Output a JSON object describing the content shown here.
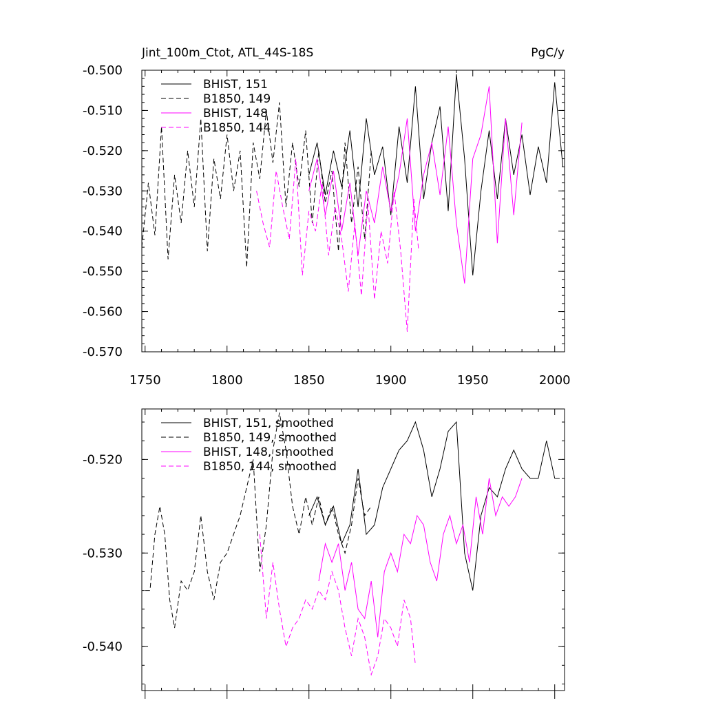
{
  "title_left": "Jint_100m_Ctot, ATL_44S-18S",
  "title_right": "PgC/y",
  "colors": {
    "black": "#000000",
    "magenta": "#ff00ff"
  },
  "chart_data": [
    {
      "type": "line",
      "name": "raw",
      "xlim": [
        1748,
        2006
      ],
      "ylim": [
        -0.57,
        -0.5
      ],
      "x_ticks": [
        1750,
        1800,
        1850,
        1900,
        1950,
        2000
      ],
      "x_tick_labels": [
        "1750",
        "1800",
        "1850",
        "1900",
        "1950",
        "2000"
      ],
      "y_ticks": [
        -0.5,
        -0.51,
        -0.52,
        -0.53,
        -0.54,
        -0.55,
        -0.56,
        -0.57
      ],
      "y_tick_labels": [
        "-0.500",
        "-0.510",
        "-0.520",
        "-0.530",
        "-0.540",
        "-0.550",
        "-0.560",
        "-0.570"
      ],
      "legend": [
        "BHIST, 151",
        "B1850, 149",
        "BHIST, 148",
        "B1850, 144"
      ],
      "series": [
        {
          "name": "BHIST, 151",
          "color": "#000000",
          "dash": false,
          "x": [
            1850,
            1855,
            1860,
            1865,
            1870,
            1875,
            1880,
            1885,
            1890,
            1895,
            1900,
            1905,
            1910,
            1915,
            1920,
            1925,
            1930,
            1935,
            1940,
            1945,
            1950,
            1955,
            1960,
            1965,
            1970,
            1975,
            1980,
            1985,
            1990,
            1995,
            2000,
            2005
          ],
          "values": [
            -0.526,
            -0.518,
            -0.531,
            -0.52,
            -0.529,
            -0.515,
            -0.534,
            -0.512,
            -0.526,
            -0.519,
            -0.536,
            -0.514,
            -0.528,
            -0.504,
            -0.532,
            -0.518,
            -0.509,
            -0.535,
            -0.501,
            -0.522,
            -0.551,
            -0.53,
            -0.515,
            -0.532,
            -0.512,
            -0.526,
            -0.516,
            -0.531,
            -0.519,
            -0.528,
            -0.503,
            -0.524
          ]
        },
        {
          "name": "B1850, 149",
          "color": "#000000",
          "dash": true,
          "x": [
            1748,
            1752,
            1756,
            1760,
            1764,
            1768,
            1772,
            1776,
            1780,
            1784,
            1788,
            1792,
            1796,
            1800,
            1804,
            1808,
            1812,
            1816,
            1820,
            1824,
            1828,
            1832,
            1836,
            1840,
            1844,
            1848,
            1852,
            1856,
            1860,
            1864,
            1868,
            1872,
            1876,
            1880,
            1884,
            1888
          ],
          "values": [
            -0.544,
            -0.528,
            -0.541,
            -0.514,
            -0.547,
            -0.526,
            -0.538,
            -0.52,
            -0.534,
            -0.512,
            -0.545,
            -0.522,
            -0.532,
            -0.516,
            -0.53,
            -0.52,
            -0.549,
            -0.518,
            -0.527,
            -0.51,
            -0.523,
            -0.508,
            -0.534,
            -0.518,
            -0.529,
            -0.515,
            -0.538,
            -0.52,
            -0.533,
            -0.525,
            -0.545,
            -0.518,
            -0.538,
            -0.524,
            -0.542,
            -0.52
          ]
        },
        {
          "name": "BHIST, 148",
          "color": "#ff00ff",
          "dash": false,
          "x": [
            1850,
            1855,
            1860,
            1865,
            1870,
            1875,
            1880,
            1885,
            1890,
            1895,
            1900,
            1905,
            1910,
            1915,
            1920,
            1925,
            1930,
            1935,
            1940,
            1945,
            1950,
            1955,
            1960,
            1965,
            1970,
            1975,
            1980
          ],
          "values": [
            -0.53,
            -0.522,
            -0.536,
            -0.525,
            -0.54,
            -0.528,
            -0.546,
            -0.53,
            -0.538,
            -0.524,
            -0.535,
            -0.526,
            -0.512,
            -0.54,
            -0.526,
            -0.518,
            -0.531,
            -0.514,
            -0.538,
            -0.553,
            -0.522,
            -0.516,
            -0.504,
            -0.543,
            -0.512,
            -0.536,
            -0.513
          ]
        },
        {
          "name": "B1850, 144",
          "color": "#ff00ff",
          "dash": true,
          "x": [
            1818,
            1822,
            1826,
            1830,
            1834,
            1838,
            1842,
            1846,
            1850,
            1854,
            1858,
            1862,
            1866,
            1870,
            1874,
            1878,
            1882,
            1886,
            1890,
            1894,
            1898,
            1902,
            1906,
            1910,
            1914,
            1917
          ],
          "values": [
            -0.53,
            -0.538,
            -0.544,
            -0.525,
            -0.534,
            -0.542,
            -0.522,
            -0.551,
            -0.535,
            -0.54,
            -0.528,
            -0.546,
            -0.534,
            -0.542,
            -0.555,
            -0.538,
            -0.556,
            -0.533,
            -0.557,
            -0.54,
            -0.548,
            -0.53,
            -0.545,
            -0.565,
            -0.532,
            -0.545
          ]
        }
      ]
    },
    {
      "type": "line",
      "name": "smoothed",
      "xlim": [
        1748,
        2006
      ],
      "ylim": [
        -0.5447,
        -0.5146
      ],
      "x_ticks": [
        1750,
        1800,
        1850,
        1900,
        1950,
        2000
      ],
      "y_ticks": [
        -0.52,
        -0.53,
        -0.54
      ],
      "y_tick_labels": [
        "-0.520",
        "-0.530",
        "-0.540"
      ],
      "legend": [
        "BHIST, 151, smoothed",
        "B1850, 149, smoothed",
        "BHIST, 148, smoothed",
        "B1850, 144, smoothed"
      ],
      "series": [
        {
          "name": "BHIST, 151, smoothed",
          "color": "#000000",
          "dash": false,
          "x": [
            1850,
            1855,
            1860,
            1865,
            1870,
            1875,
            1880,
            1885,
            1890,
            1895,
            1900,
            1905,
            1910,
            1915,
            1920,
            1925,
            1930,
            1935,
            1940,
            1945,
            1950,
            1955,
            1960,
            1965,
            1970,
            1975,
            1980,
            1985,
            1990,
            1995,
            2000,
            2003
          ],
          "values": [
            -0.526,
            -0.524,
            -0.527,
            -0.525,
            -0.529,
            -0.527,
            -0.521,
            -0.528,
            -0.527,
            -0.523,
            -0.521,
            -0.519,
            -0.518,
            -0.516,
            -0.519,
            -0.524,
            -0.521,
            -0.517,
            -0.516,
            -0.53,
            -0.534,
            -0.526,
            -0.523,
            -0.524,
            -0.521,
            -0.519,
            -0.521,
            -0.522,
            -0.522,
            -0.518,
            -0.522,
            -0.522
          ]
        },
        {
          "name": "B1850, 149, smoothed",
          "color": "#000000",
          "dash": true,
          "x": [
            1750,
            1753,
            1756,
            1759,
            1762,
            1765,
            1768,
            1772,
            1776,
            1780,
            1784,
            1788,
            1792,
            1796,
            1800,
            1804,
            1808,
            1812,
            1816,
            1820,
            1824,
            1828,
            1832,
            1836,
            1840,
            1844,
            1848,
            1852,
            1856,
            1860,
            1864,
            1868,
            1872,
            1876,
            1880,
            1884,
            1888
          ],
          "values": [
            -0.534,
            -0.534,
            -0.528,
            -0.525,
            -0.528,
            -0.535,
            -0.538,
            -0.533,
            -0.534,
            -0.532,
            -0.526,
            -0.532,
            -0.535,
            -0.531,
            -0.53,
            -0.528,
            -0.526,
            -0.523,
            -0.52,
            -0.532,
            -0.527,
            -0.519,
            -0.515,
            -0.519,
            -0.525,
            -0.528,
            -0.524,
            -0.527,
            -0.524,
            -0.527,
            -0.525,
            -0.528,
            -0.53,
            -0.527,
            -0.522,
            -0.526,
            -0.525
          ]
        },
        {
          "name": "BHIST, 148, smoothed",
          "color": "#ff00ff",
          "dash": false,
          "x": [
            1856,
            1860,
            1864,
            1868,
            1872,
            1876,
            1880,
            1884,
            1888,
            1892,
            1896,
            1900,
            1904,
            1908,
            1912,
            1916,
            1920,
            1924,
            1928,
            1932,
            1936,
            1940,
            1944,
            1948,
            1952,
            1956,
            1960,
            1964,
            1968,
            1972,
            1976,
            1980
          ],
          "values": [
            -0.533,
            -0.529,
            -0.531,
            -0.529,
            -0.534,
            -0.531,
            -0.536,
            -0.537,
            -0.533,
            -0.539,
            -0.532,
            -0.53,
            -0.532,
            -0.528,
            -0.529,
            -0.526,
            -0.527,
            -0.531,
            -0.533,
            -0.528,
            -0.526,
            -0.529,
            -0.527,
            -0.531,
            -0.524,
            -0.528,
            -0.522,
            -0.526,
            -0.524,
            -0.525,
            -0.524,
            -0.522
          ]
        },
        {
          "name": "B1850, 144, smoothed",
          "color": "#ff00ff",
          "dash": true,
          "x": [
            1820,
            1824,
            1828,
            1832,
            1836,
            1840,
            1844,
            1848,
            1852,
            1856,
            1860,
            1864,
            1868,
            1872,
            1876,
            1880,
            1884,
            1888,
            1892,
            1896,
            1900,
            1904,
            1908,
            1912,
            1915
          ],
          "values": [
            -0.528,
            -0.537,
            -0.531,
            -0.536,
            -0.54,
            -0.538,
            -0.537,
            -0.535,
            -0.536,
            -0.534,
            -0.535,
            -0.532,
            -0.534,
            -0.538,
            -0.541,
            -0.537,
            -0.539,
            -0.543,
            -0.541,
            -0.537,
            -0.538,
            -0.54,
            -0.535,
            -0.537,
            -0.542
          ]
        }
      ]
    }
  ]
}
